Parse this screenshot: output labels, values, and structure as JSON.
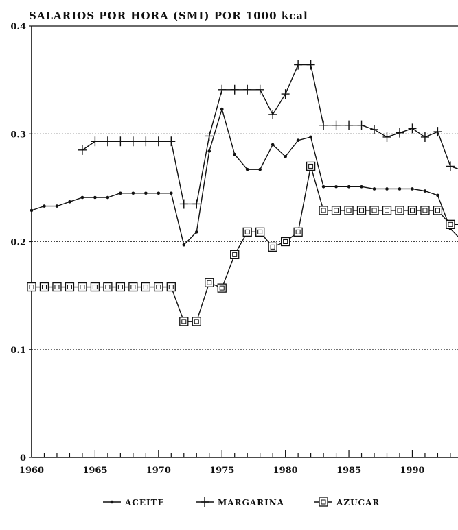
{
  "chart_data": {
    "type": "line",
    "title": "SALARIOS POR HORA (SMI) POR 1000 kcal",
    "xlabel": "",
    "ylabel": "",
    "xlim": [
      1960,
      1994
    ],
    "ylim": [
      0,
      0.4
    ],
    "x_ticks": [
      1960,
      1965,
      1970,
      1975,
      1980,
      1985,
      1990
    ],
    "x_tick_labels": [
      "1960",
      "1965",
      "1970",
      "1975",
      "1980",
      "1985",
      "1990"
    ],
    "y_ticks": [
      0,
      0.1,
      0.2,
      0.3,
      0.4
    ],
    "y_tick_labels": [
      "0",
      "0.1",
      "0.2",
      "0.3",
      "0.4"
    ],
    "grid": "horizontal dotted",
    "legend_position": "bottom",
    "series": [
      {
        "name": "ACEITE",
        "marker": "dot",
        "x": [
          1960,
          1961,
          1962,
          1963,
          1964,
          1965,
          1966,
          1967,
          1968,
          1969,
          1970,
          1971,
          1972,
          1973,
          1974,
          1975,
          1976,
          1977,
          1978,
          1979,
          1980,
          1981,
          1982,
          1983,
          1984,
          1985,
          1986,
          1987,
          1988,
          1989,
          1990,
          1991,
          1992,
          1993,
          1994
        ],
        "values": [
          0.229,
          0.233,
          0.233,
          0.237,
          0.241,
          0.241,
          0.241,
          0.245,
          0.245,
          0.245,
          0.245,
          0.245,
          0.197,
          0.209,
          0.284,
          0.323,
          0.281,
          0.267,
          0.267,
          0.29,
          0.279,
          0.294,
          0.297,
          0.251,
          0.251,
          0.251,
          0.251,
          0.249,
          0.249,
          0.249,
          0.249,
          0.247,
          0.243,
          0.212,
          0.2
        ]
      },
      {
        "name": "MARGARINA",
        "marker": "plus",
        "x": [
          1964,
          1965,
          1966,
          1967,
          1968,
          1969,
          1970,
          1971,
          1972,
          1973,
          1974,
          1975,
          1976,
          1977,
          1978,
          1979,
          1980,
          1981,
          1982,
          1983,
          1984,
          1985,
          1986,
          1987,
          1988,
          1989,
          1990,
          1991,
          1992,
          1993,
          1994
        ],
        "values": [
          0.285,
          0.293,
          0.293,
          0.293,
          0.293,
          0.293,
          0.293,
          0.293,
          0.235,
          0.235,
          0.298,
          0.341,
          0.341,
          0.341,
          0.341,
          0.318,
          0.337,
          0.364,
          0.364,
          0.308,
          0.308,
          0.308,
          0.308,
          0.304,
          0.297,
          0.301,
          0.305,
          0.297,
          0.302,
          0.27,
          0.266
        ]
      },
      {
        "name": "AZUCAR",
        "marker": "square",
        "x": [
          1960,
          1961,
          1962,
          1963,
          1964,
          1965,
          1966,
          1967,
          1968,
          1969,
          1970,
          1971,
          1972,
          1973,
          1974,
          1975,
          1976,
          1977,
          1978,
          1979,
          1980,
          1981,
          1982,
          1983,
          1984,
          1985,
          1986,
          1987,
          1988,
          1989,
          1990,
          1991,
          1992,
          1993,
          1994
        ],
        "values": [
          0.158,
          0.158,
          0.158,
          0.158,
          0.158,
          0.158,
          0.158,
          0.158,
          0.158,
          0.158,
          0.158,
          0.158,
          0.126,
          0.126,
          0.162,
          0.157,
          0.188,
          0.209,
          0.209,
          0.195,
          0.2,
          0.209,
          0.27,
          0.229,
          0.229,
          0.229,
          0.229,
          0.229,
          0.229,
          0.229,
          0.229,
          0.229,
          0.229,
          0.216,
          0.216
        ]
      }
    ],
    "colors": {
      "ink": "#111111",
      "background": "#ffffff",
      "grid": "#444444"
    }
  }
}
